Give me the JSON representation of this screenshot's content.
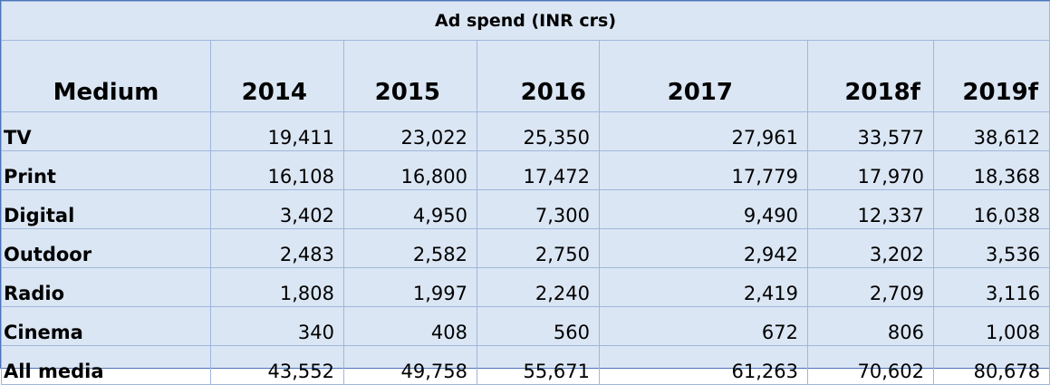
{
  "chart_data": {
    "type": "table",
    "title": "Ad spend (INR crs)",
    "columns": [
      "Medium",
      "2014",
      "2015",
      "2016",
      "2017",
      "2018f",
      "2019f"
    ],
    "rows": [
      {
        "label": "TV",
        "values": [
          "19,411",
          "23,022",
          "25,350",
          "27,961",
          "33,577",
          "38,612"
        ]
      },
      {
        "label": "Print",
        "values": [
          "16,108",
          "16,800",
          "17,472",
          "17,779",
          "17,970",
          "18,368"
        ]
      },
      {
        "label": "Digital",
        "values": [
          "3,402",
          "4,950",
          "7,300",
          "9,490",
          "12,337",
          "16,038"
        ]
      },
      {
        "label": "Outdoor",
        "values": [
          "2,483",
          "2,582",
          "2,750",
          "2,942",
          "3,202",
          "3,536"
        ]
      },
      {
        "label": "Radio",
        "values": [
          "1,808",
          "1,997",
          "2,240",
          "2,419",
          "2,709",
          "3,116"
        ]
      },
      {
        "label": "Cinema",
        "values": [
          "340",
          "408",
          "560",
          "672",
          "806",
          "1,008"
        ]
      },
      {
        "label": "All media",
        "values": [
          "43,552",
          "49,758",
          "55,671",
          "61,263",
          "70,602",
          "80,678"
        ]
      }
    ]
  },
  "colors": {
    "background": "#dbe6f4",
    "grid": "#9fb7dc",
    "border": "#4a74b8"
  }
}
